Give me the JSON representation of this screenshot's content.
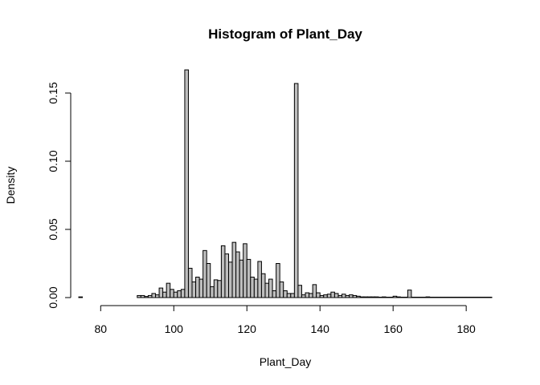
{
  "chart_data": {
    "type": "bar",
    "title": "Histogram of Plant_Day",
    "xlabel": "Plant_Day",
    "ylabel": "Density",
    "xlim": [
      74,
      187
    ],
    "ylim": [
      0,
      0.17
    ],
    "xticks": [
      80,
      100,
      120,
      140,
      160,
      180
    ],
    "yticks": [
      0.0,
      0.05,
      0.1,
      0.15
    ],
    "ytick_labels": [
      "0.00",
      "0.05",
      "0.10",
      "0.15"
    ],
    "bin_start": 74,
    "bin_width": 1,
    "bar_color": "#bebebe",
    "grid": false,
    "densities": [
      0.0005,
      0,
      0,
      0,
      0,
      0,
      0,
      0,
      0,
      0,
      0,
      0,
      0,
      0,
      0,
      0,
      0.0015,
      0.0015,
      0.0008,
      0.0015,
      0.003,
      0.002,
      0.007,
      0.004,
      0.0105,
      0.006,
      0.004,
      0.005,
      0.006,
      0.167,
      0.0215,
      0.0115,
      0.015,
      0.0135,
      0.0345,
      0.025,
      0.008,
      0.013,
      0.0125,
      0.038,
      0.032,
      0.026,
      0.0405,
      0.0335,
      0.0275,
      0.0395,
      0.028,
      0.015,
      0.0135,
      0.0265,
      0.0175,
      0.0105,
      0.0135,
      0.005,
      0.025,
      0.0115,
      0.005,
      0.003,
      0.003,
      0.157,
      0.009,
      0.002,
      0.0035,
      0.003,
      0.0095,
      0.0035,
      0.0015,
      0.002,
      0.0025,
      0.004,
      0.003,
      0.0015,
      0.0025,
      0.0015,
      0.002,
      0.0015,
      0.001,
      0.0005,
      0.0005,
      0.0005,
      0.0005,
      0.0005,
      0.0003,
      0.0005,
      0.0003,
      0.0003,
      0.001,
      0.0005,
      0.0003,
      0.0003,
      0.0055,
      0.0003,
      0.0003,
      0.0003,
      0.0003,
      0.0005,
      0.0003,
      0.0003,
      0.0003,
      0.0003,
      0.0003,
      0.0003,
      0.0003,
      0.0003,
      0.0003,
      0.0003,
      0.0003,
      0.0003,
      0.0003,
      0.0003,
      0.0003,
      0.0003,
      0.0003
    ]
  }
}
